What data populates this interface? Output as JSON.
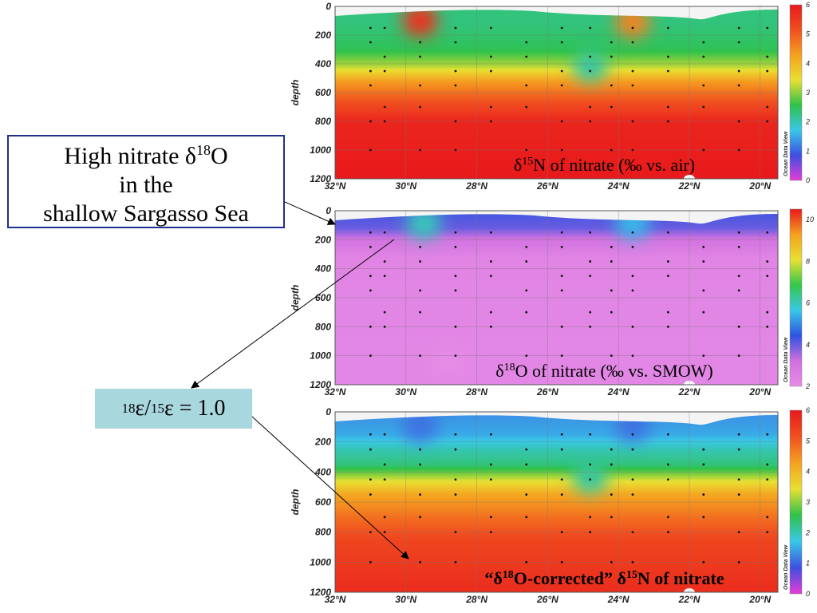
{
  "callout": {
    "line1_prefix": "High nitrate δ",
    "line1_sup": "18",
    "line1_suffix": "O",
    "line2": "in the",
    "line3": "shallow Sargasso Sea"
  },
  "ratio_box": {
    "sup1": "18",
    "mid": "ε/",
    "sup2": "15",
    "end": "ε = 1.0"
  },
  "chart_data": [
    {
      "type": "heatmap",
      "title_parts": [
        "δ",
        "15",
        "N of nitrate (‰ vs. air)"
      ],
      "ylabel": "depth",
      "x_ticks": [
        "32°N",
        "30°N",
        "28°N",
        "26°N",
        "24°N",
        "22°N",
        "20°N"
      ],
      "y_ticks": [
        "0",
        "200",
        "400",
        "600",
        "800",
        "1000",
        "1200"
      ],
      "xlim": [
        32,
        19.5
      ],
      "ylim": [
        0,
        1200
      ],
      "colorbar_ticks": [
        "6",
        "5",
        "4",
        "3",
        "2",
        "1",
        "0"
      ],
      "colorbar_range": [
        0,
        6
      ],
      "watermark": "Ocean Data View",
      "palette": [
        "#e63cd8",
        "#3d4fe0",
        "#39c8e8",
        "#2fc14a",
        "#e8e032",
        "#f5a020",
        "#f05020",
        "#e8191c"
      ],
      "depth_profile": [
        [
          0,
          2.3
        ],
        [
          120,
          2.3
        ],
        [
          300,
          2.5
        ],
        [
          420,
          3.2
        ],
        [
          520,
          4.3
        ],
        [
          600,
          4.8
        ],
        [
          700,
          5.3
        ],
        [
          800,
          5.8
        ],
        [
          1200,
          6.0
        ]
      ],
      "features": [
        {
          "lat": 29.6,
          "depth": 100,
          "value": 5.6
        },
        {
          "lat": 23.6,
          "depth": 110,
          "value": 4.6
        },
        {
          "lat": 24.8,
          "depth": 420,
          "value": 2.1
        }
      ]
    },
    {
      "type": "heatmap",
      "title_parts": [
        "δ",
        "18",
        "O of nitrate (‰ vs. SMOW)"
      ],
      "ylabel": "depth",
      "x_ticks": [
        "32°N",
        "30°N",
        "28°N",
        "26°N",
        "24°N",
        "22°N",
        "20°N"
      ],
      "y_ticks": [
        "0",
        "200",
        "400",
        "600",
        "800",
        "1000",
        "1200"
      ],
      "xlim": [
        32,
        19.5
      ],
      "ylim": [
        0,
        1200
      ],
      "colorbar_ticks": [
        "10",
        "8",
        "6",
        "4",
        "2"
      ],
      "colorbar_range": [
        2,
        10.5
      ],
      "watermark": "Ocean Data View",
      "palette": [
        "#e68ce6",
        "#d070e0",
        "#2f52e0",
        "#39c8e8",
        "#35c74c",
        "#e8e032",
        "#f5a020",
        "#e8191c"
      ],
      "depth_profile": [
        [
          0,
          4.3
        ],
        [
          120,
          4.0
        ],
        [
          210,
          3.0
        ],
        [
          260,
          2.7
        ],
        [
          330,
          2.3
        ],
        [
          1200,
          2.2
        ]
      ],
      "features": [
        {
          "lat": 29.5,
          "depth": 90,
          "value": 6.0
        },
        {
          "lat": 23.6,
          "depth": 90,
          "value": 5.5
        },
        {
          "lat": 28.8,
          "depth": 1050,
          "value": 2.0
        }
      ]
    },
    {
      "type": "heatmap",
      "title_parts": [
        "“δ",
        "18",
        "O-corrected” δ",
        "15",
        "N of nitrate"
      ],
      "ylabel": "depth",
      "x_ticks": [
        "32°N",
        "30°N",
        "28°N",
        "26°N",
        "24°N",
        "22°N",
        "20°N"
      ],
      "y_ticks": [
        "0",
        "200",
        "400",
        "600",
        "800",
        "1000",
        "1200"
      ],
      "xlim": [
        32,
        19.5
      ],
      "ylim": [
        0,
        1200
      ],
      "colorbar_ticks": [
        "6",
        "5",
        "4",
        "3",
        "2",
        "1",
        "0"
      ],
      "colorbar_range": [
        0,
        6
      ],
      "watermark": "Ocean Data View",
      "palette": [
        "#e63cd8",
        "#3d4fe0",
        "#39c8e8",
        "#2fc14a",
        "#e8e032",
        "#f5a020",
        "#f05020",
        "#e8191c"
      ],
      "depth_profile": [
        [
          0,
          1.3
        ],
        [
          150,
          1.5
        ],
        [
          250,
          2.0
        ],
        [
          350,
          2.3
        ],
        [
          450,
          3.3
        ],
        [
          550,
          4.2
        ],
        [
          700,
          4.8
        ],
        [
          850,
          5.3
        ],
        [
          1200,
          5.7
        ]
      ],
      "features": [
        {
          "lat": 29.6,
          "depth": 90,
          "value": 1.1
        },
        {
          "lat": 23.6,
          "depth": 90,
          "value": 1.1
        },
        {
          "lat": 24.8,
          "depth": 440,
          "value": 2.1
        }
      ]
    }
  ]
}
